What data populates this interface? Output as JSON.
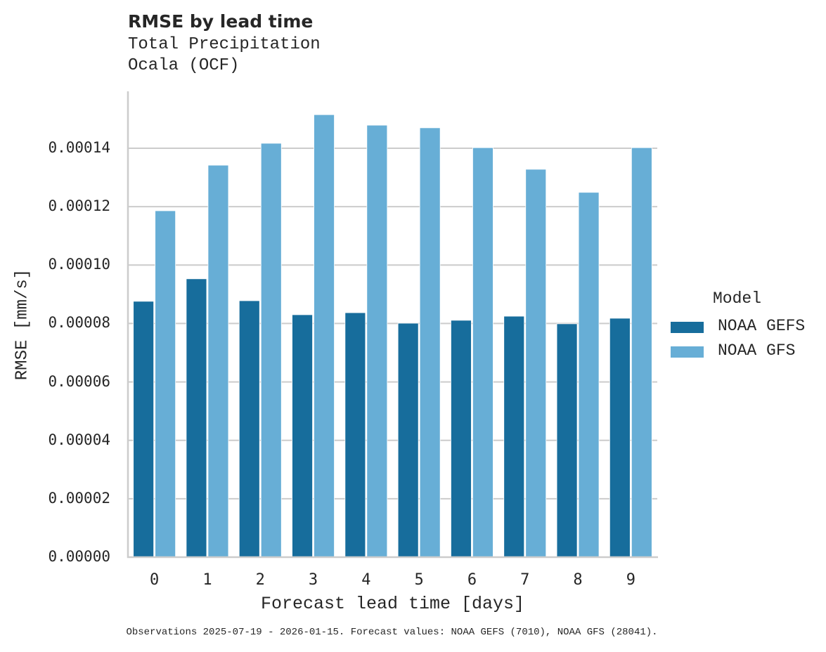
{
  "header": {
    "title": "RMSE by lead time",
    "subtitle_line1": "Total Precipitation",
    "subtitle_line2": "Ocala (OCF)"
  },
  "axes": {
    "xlabel": "Forecast lead time [days]",
    "ylabel": "RMSE [mm/s]",
    "yticks": [
      "0.00000",
      "0.00002",
      "0.00004",
      "0.00006",
      "0.00008",
      "0.00010",
      "0.00012",
      "0.00014"
    ],
    "xticks": [
      "0",
      "1",
      "2",
      "3",
      "4",
      "5",
      "6",
      "7",
      "8",
      "9"
    ]
  },
  "legend": {
    "title": "Model",
    "items": [
      {
        "label": "NOAA GEFS",
        "color": "#176d9c"
      },
      {
        "label": "NOAA GFS",
        "color": "#67aed6"
      }
    ]
  },
  "footnote": "Observations 2025-07-19 - 2026-01-15. Forecast values: NOAA GEFS (7010), NOAA GFS (28041).",
  "colors": {
    "gefs": "#176d9c",
    "gfs": "#67aed6",
    "grid": "#cccccc",
    "axis": "#cccccc",
    "text": "#262626"
  },
  "chart_data": {
    "type": "bar",
    "title": "RMSE by lead time",
    "subtitle": "Total Precipitation — Ocala (OCF)",
    "xlabel": "Forecast lead time [days]",
    "ylabel": "RMSE [mm/s]",
    "categories": [
      "0",
      "1",
      "2",
      "3",
      "4",
      "5",
      "6",
      "7",
      "8",
      "9"
    ],
    "series": [
      {
        "name": "NOAA GEFS",
        "values": [
          8.76e-05,
          9.53e-05,
          8.78e-05,
          8.3e-05,
          8.37e-05,
          8.01e-05,
          8.11e-05,
          8.25e-05,
          7.99e-05,
          8.18e-05
        ]
      },
      {
        "name": "NOAA GFS",
        "values": [
          0.0001186,
          0.0001342,
          0.0001417,
          0.0001515,
          0.0001479,
          0.000147,
          0.0001402,
          0.0001328,
          0.0001249,
          0.0001402
        ]
      }
    ],
    "ylim": [
      0,
      0.00016
    ],
    "yticks": [
      0,
      2e-05,
      4e-05,
      6e-05,
      8e-05,
      0.0001,
      0.00012,
      0.00014
    ],
    "grid": "horizontal",
    "legend_position": "right",
    "legend_title": "Model"
  }
}
